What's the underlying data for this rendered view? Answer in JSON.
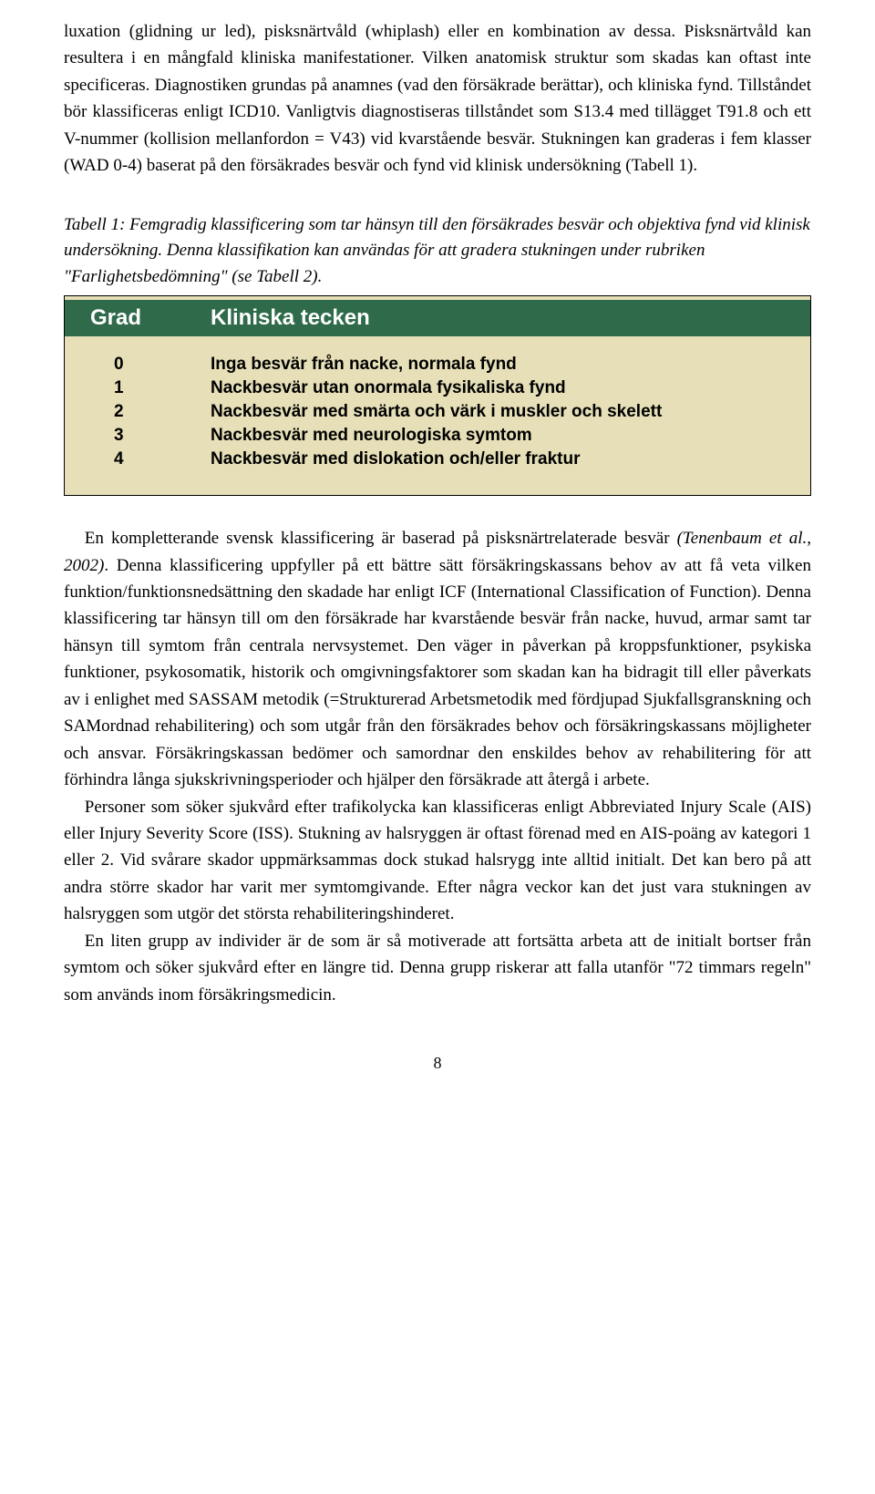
{
  "paragraphs": {
    "p1": "luxation (glidning ur led), pisksnärtvåld (whiplash) eller en kombination av dessa. Pisksnärtvåld kan resultera i en mångfald kliniska manifestationer. Vilken anatomisk struktur som skadas kan oftast inte specificeras. Diagnostiken grundas på anamnes (vad den försäkrade berättar), och kliniska fynd. Tillståndet bör klassificeras enligt ICD10. Vanligtvis diagnostiseras tillståndet som S13.4 med tillägget T91.8 och ett V-nummer (kollision mellanfordon = V43) vid kvarstående besvär. Stukningen kan graderas i fem klasser (WAD 0-4) baserat på den försäkrades besvär och fynd vid klinisk undersökning (Tabell 1).",
    "caption": "Tabell 1: Femgradig klassificering som tar hänsyn till den försäkrades besvär och objektiva fynd vid klinisk undersökning. Denna klassifikation kan användas för att gradera stukningen under rubriken \"Farlighetsbedömning\" (se Tabell 2).",
    "p2a": "En kompletterande svensk klassificering är baserad på pisksnärtrelaterade besvär ",
    "p2b_italic": "(Tenenbaum et al., 2002)",
    "p2c": ". Denna klassificering uppfyller på ett bättre sätt försäkringskassans behov av att få veta vilken funktion/funktionsnedsättning den skadade har enligt ICF (International Classification of Function). Denna klassificering tar hänsyn till om den försäkrade har kvarstående besvär från nacke, huvud, armar samt tar hänsyn till symtom från centrala nervsystemet. Den väger in påverkan på kroppsfunktioner, psykiska funktioner, psykosomatik, historik och omgivningsfaktorer som skadan kan ha bidragit till eller påverkats av i enlighet med SASSAM metodik (=Strukturerad Arbetsmetodik med fördjupad Sjukfallsgranskning och SAMordnad rehabilitering) och som utgår från den försäkrades behov och försäkringskassans möjligheter och ansvar. Försäkringskassan bedömer och samordnar den enskildes behov av rehabilitering för att förhindra långa sjukskrivningsperioder och hjälper den försäkrade att återgå i arbete.",
    "p3": "Personer som söker sjukvård efter trafikolycka kan klassificeras enligt Abbreviated Injury Scale (AIS) eller Injury Severity Score (ISS). Stukning av halsryggen är oftast förenad med en AIS-poäng av kategori 1 eller 2. Vid svårare skador uppmärksammas dock stukad halsrygg inte alltid initialt. Det kan bero på att andra större skador har varit mer symtomgivande. Efter några veckor kan det just vara stukningen av halsryggen som utgör det största rehabiliteringshinderet.",
    "p4": "En liten grupp av individer är de som är så motiverade att fortsätta arbeta att de initialt bortser från symtom och söker sjukvård efter en längre tid. Denna grupp riskerar att falla utanför \"72 timmars regeln\" som används inom försäkringsmedicin."
  },
  "table": {
    "header": {
      "c0": "Grad",
      "c1": "Kliniska tecken"
    },
    "rows": [
      {
        "grade": "0",
        "sign": "Inga besvär från nacke, normala fynd"
      },
      {
        "grade": "1",
        "sign": "Nackbesvär utan onormala fysikaliska fynd"
      },
      {
        "grade": "2",
        "sign": "Nackbesvär med smärta och värk i muskler och skelett"
      },
      {
        "grade": "3",
        "sign": "Nackbesvär med neurologiska symtom"
      },
      {
        "grade": "4",
        "sign": "Nackbesvär med dislokation och/eller fraktur"
      }
    ],
    "colors": {
      "header_bg": "#2f6b4a",
      "header_fg": "#ffffff",
      "body_bg": "#e6dfb8",
      "border": "#000000"
    }
  },
  "page_number": "8"
}
